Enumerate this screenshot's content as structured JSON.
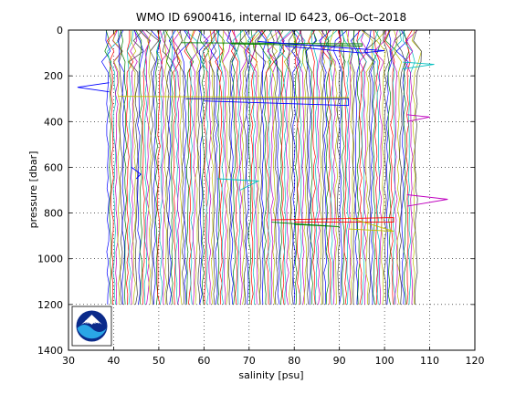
{
  "chart_data": {
    "type": "line",
    "title": "WMO ID 6900416, internal ID 6423, 06–Oct–2018",
    "xlabel": "salinity [psu]",
    "ylabel": "pressure [dbar]",
    "xlim": [
      30,
      120
    ],
    "ylim": [
      0,
      1400
    ],
    "y_reversed": true,
    "x_ticks": [
      "30",
      "40",
      "50",
      "60",
      "70",
      "80",
      "90",
      "100",
      "110",
      "120"
    ],
    "y_ticks": [
      "0",
      "200",
      "400",
      "600",
      "800",
      "1000",
      "1200",
      "1400"
    ],
    "grid": true,
    "grid_style": "dotted",
    "series_colors": [
      "#0000ff",
      "#008000",
      "#ff0000",
      "#00bfbf",
      "#bf00bf",
      "#bfbf00",
      "#404040"
    ],
    "profile_count": 140,
    "salinity_range": [
      38.7,
      107.0
    ],
    "profile_depth": 1200,
    "notable_excursions": [
      {
        "color": "#0000ff",
        "points": [
          [
            39,
            230
          ],
          [
            32,
            250
          ],
          [
            39,
            270
          ]
        ]
      },
      {
        "color": "#bfbf00",
        "points": [
          [
            41,
            290
          ],
          [
            92,
            295
          ],
          [
            92,
            300
          ],
          [
            56,
            302
          ]
        ]
      },
      {
        "color": "#0000ff",
        "points": [
          [
            56,
            300
          ],
          [
            92,
            300
          ],
          [
            92,
            330
          ],
          [
            60,
            310
          ]
        ]
      },
      {
        "color": "#008000",
        "points": [
          [
            55,
            55
          ],
          [
            95,
            60
          ],
          [
            95,
            70
          ],
          [
            66,
            60
          ]
        ]
      },
      {
        "color": "#0000ff",
        "points": [
          [
            72,
            50
          ],
          [
            100,
            90
          ],
          [
            95,
            100
          ],
          [
            78,
            70
          ]
        ]
      },
      {
        "color": "#00bfbf",
        "points": [
          [
            104,
            140
          ],
          [
            111,
            150
          ],
          [
            104,
            170
          ]
        ]
      },
      {
        "color": "#bf00bf",
        "points": [
          [
            105,
            370
          ],
          [
            110,
            380
          ],
          [
            105,
            400
          ]
        ]
      },
      {
        "color": "#bf00bf",
        "points": [
          [
            105,
            720
          ],
          [
            114,
            740
          ],
          [
            105,
            770
          ]
        ]
      },
      {
        "color": "#ff0000",
        "points": [
          [
            75,
            830
          ],
          [
            102,
            820
          ],
          [
            102,
            840
          ],
          [
            80,
            840
          ]
        ]
      },
      {
        "color": "#bfbf00",
        "points": [
          [
            92,
            820
          ],
          [
            102,
            880
          ],
          [
            92,
            870
          ]
        ]
      },
      {
        "color": "#008000",
        "points": [
          [
            75,
            840
          ],
          [
            90,
            860
          ],
          [
            80,
            850
          ]
        ]
      },
      {
        "color": "#00bfbf",
        "points": [
          [
            63,
            650
          ],
          [
            72,
            660
          ],
          [
            68,
            700
          ]
        ]
      },
      {
        "color": "#0000ff",
        "points": [
          [
            44,
            600
          ],
          [
            46,
            630
          ],
          [
            45,
            650
          ]
        ]
      }
    ]
  },
  "logo": {
    "name": "noaa-logo",
    "text": "NOAA",
    "colors": [
      "#0a2a8a",
      "#2aa6e6"
    ]
  }
}
